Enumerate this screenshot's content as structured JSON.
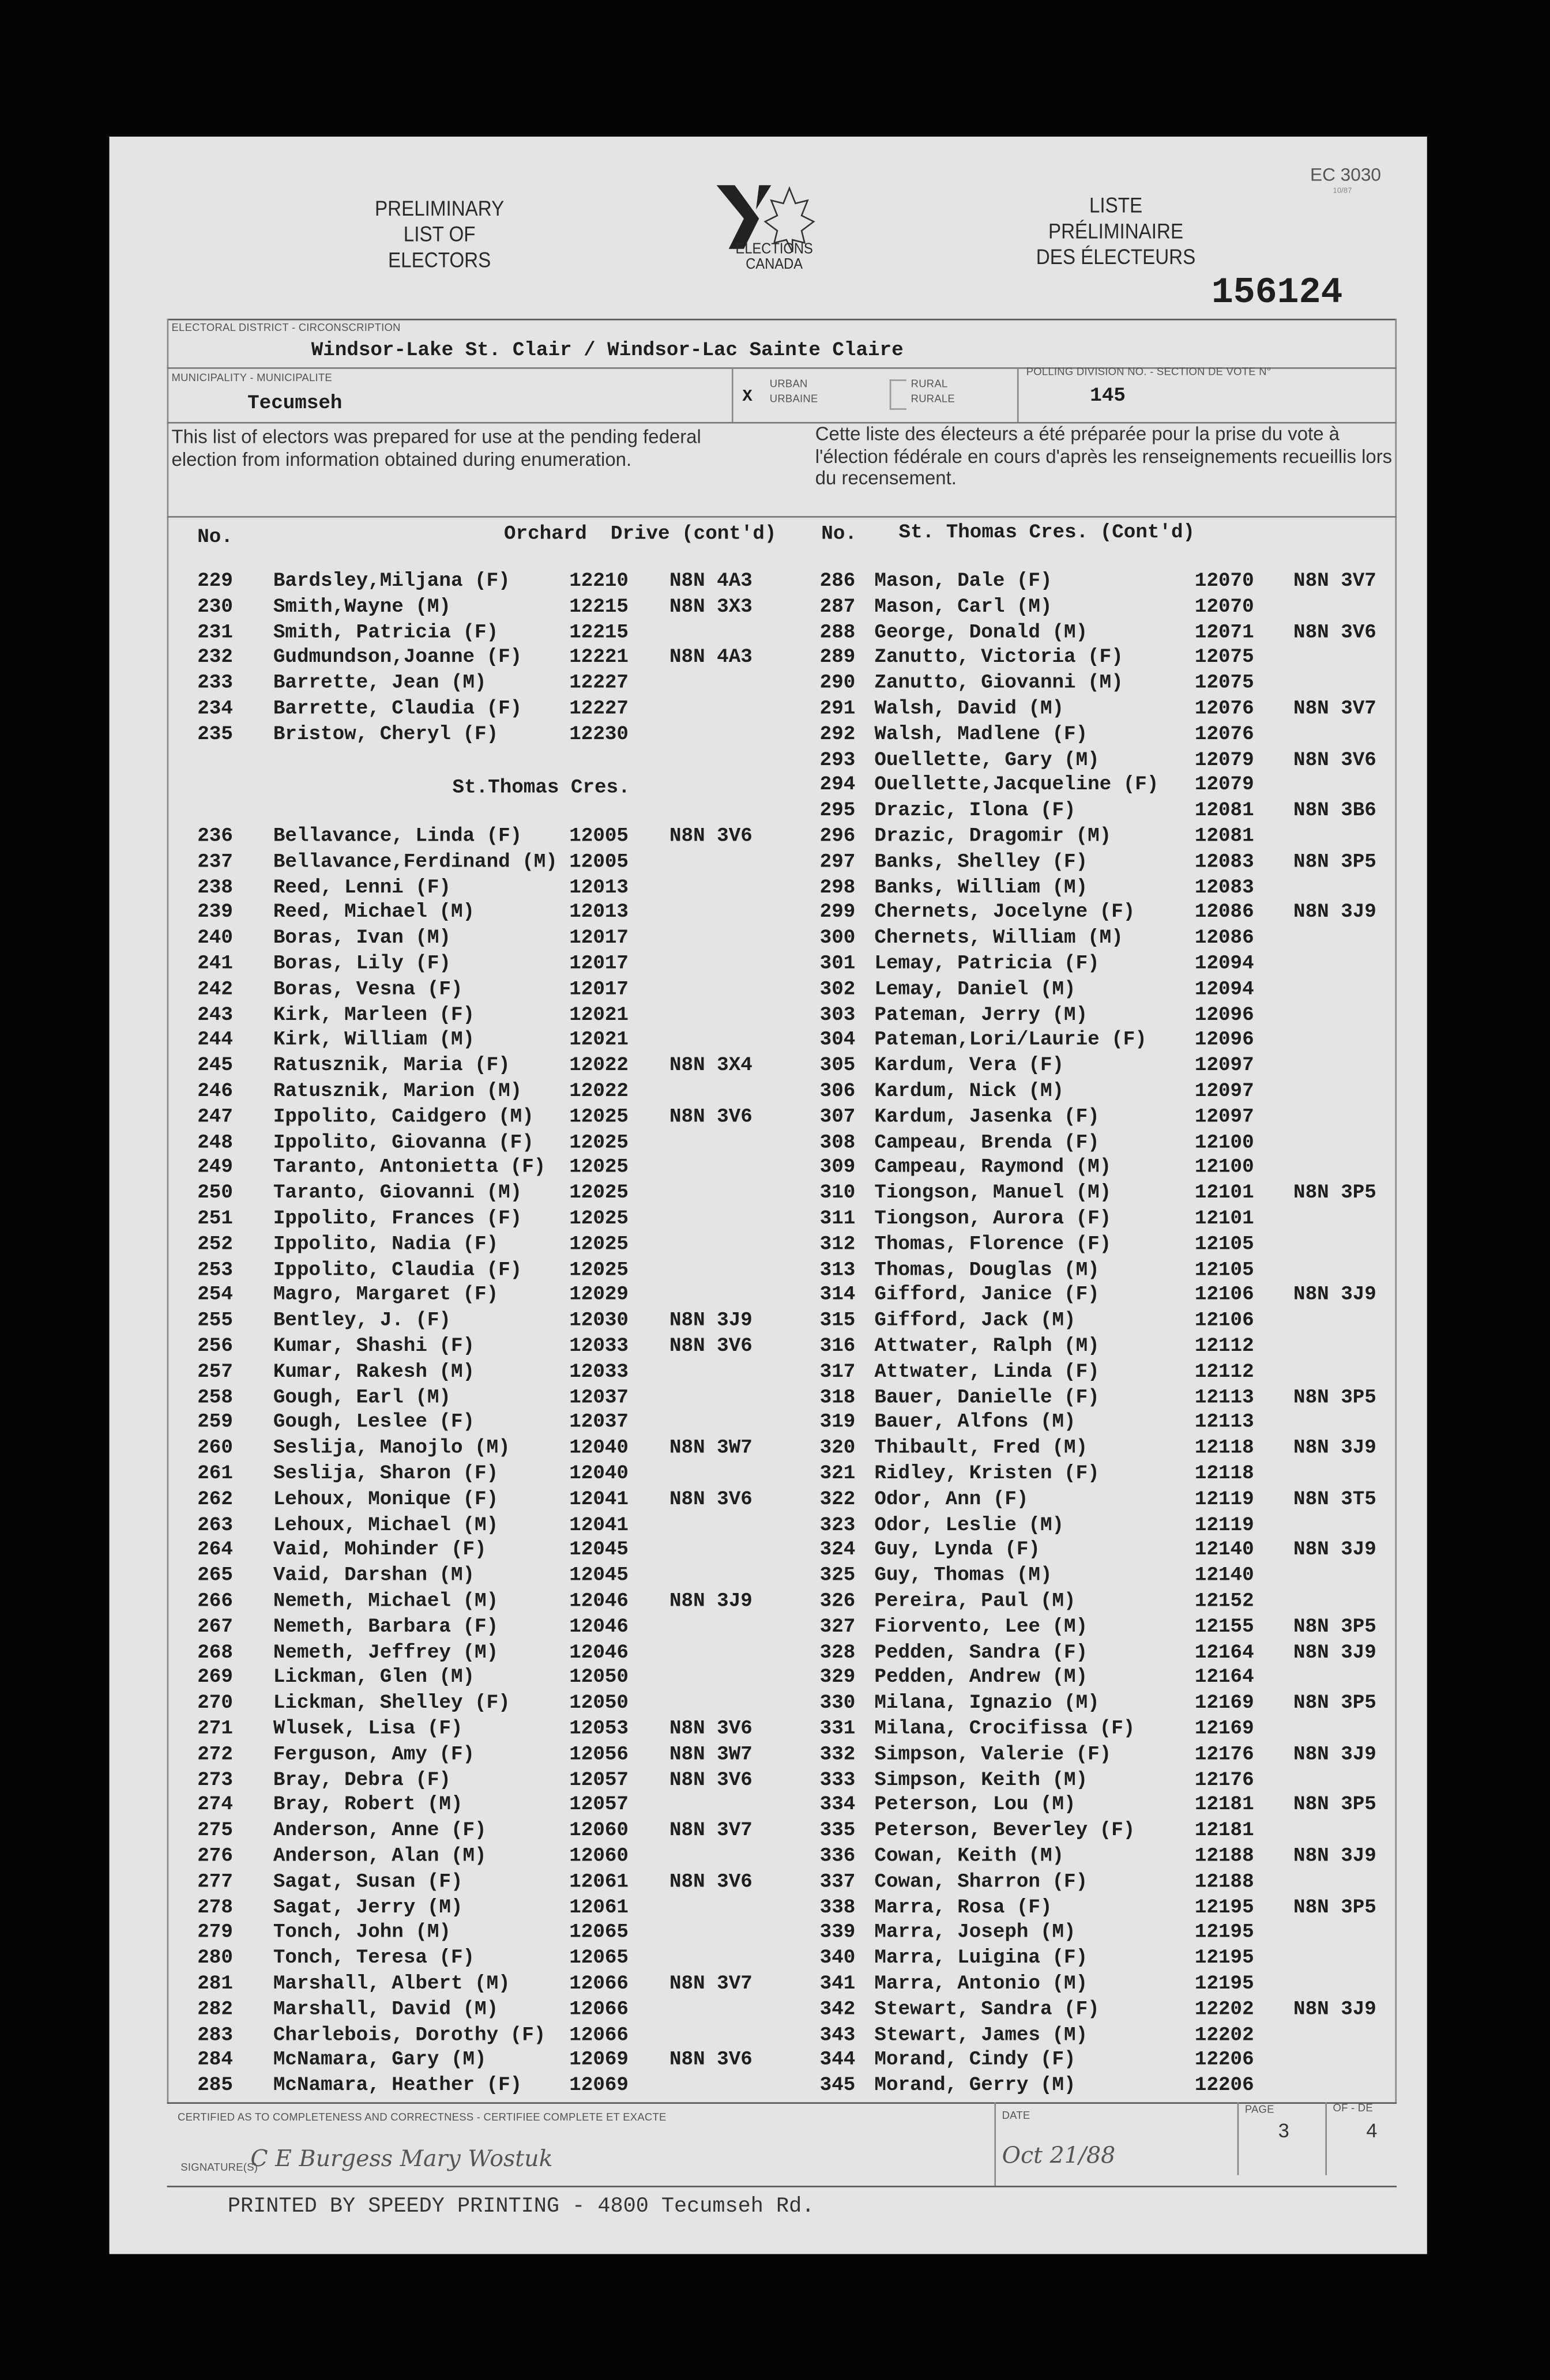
{
  "header": {
    "title_en": [
      "PRELIMINARY",
      "LIST OF",
      "ELECTORS"
    ],
    "title_fr": [
      "LISTE",
      "PRÉLIMINAIRE",
      "DES ÉLECTEURS"
    ],
    "logo_text": [
      "ELECTIONS",
      "CANADA"
    ],
    "form_code": "EC 3030",
    "form_date": "10/87",
    "serial": "156124"
  },
  "district": {
    "label": "ELECTORAL DISTRICT - CIRCONSCRIPTION",
    "value": "Windsor-Lake St. Clair / Windsor-Lac Sainte Claire"
  },
  "municipality": {
    "label": "MUNICIPALITY - MUNICIPALITE",
    "value": "Tecumseh"
  },
  "area_type": {
    "urban_en": "URBAN",
    "urban_fr": "URBAINE",
    "rural_en": "RURAL",
    "rural_fr": "RURALE",
    "selected": "urban",
    "mark": "X"
  },
  "polling": {
    "label": "POLLING DIVISION NO. - SECTION DE VOTE N°",
    "value": "145"
  },
  "notice": {
    "en": "This list of electors was prepared for use at the pending federal election from information obtained during enumeration.",
    "fr": "Cette liste des électeurs a été préparée pour la prise du vote à l'élection fédérale en cours d'après les renseignements recueillis lors du recensement."
  },
  "columns": {
    "no_left": "No.",
    "street_left": "Orchard  Drive (cont'd)",
    "no_right": "No.",
    "street_right": "St. Thomas Cres. (Cont'd)"
  },
  "left_heading": "St.Thomas Cres.",
  "left_a": [
    [
      "229",
      "Bardsley,Miljana (F)",
      "12210",
      "N8N 4A3"
    ],
    [
      "230",
      "Smith,Wayne (M)",
      "12215",
      "N8N 3X3"
    ],
    [
      "231",
      "Smith, Patricia (F)",
      "12215",
      ""
    ],
    [
      "232",
      "Gudmundson,Joanne (F)",
      "12221",
      "N8N 4A3"
    ],
    [
      "233",
      "Barrette, Jean (M)",
      "12227",
      ""
    ],
    [
      "234",
      "Barrette, Claudia (F)",
      "12227",
      ""
    ],
    [
      "235",
      "Bristow, Cheryl (F)",
      "12230",
      ""
    ]
  ],
  "left_b": [
    [
      "236",
      "Bellavance, Linda (F)",
      "12005",
      "N8N 3V6"
    ],
    [
      "237",
      "Bellavance,Ferdinand (M)",
      "12005",
      ""
    ],
    [
      "238",
      "Reed, Lenni (F)",
      "12013",
      ""
    ],
    [
      "239",
      "Reed, Michael (M)",
      "12013",
      ""
    ],
    [
      "240",
      "Boras, Ivan (M)",
      "12017",
      ""
    ],
    [
      "241",
      "Boras, Lily (F)",
      "12017",
      ""
    ],
    [
      "242",
      "Boras, Vesna (F)",
      "12017",
      ""
    ],
    [
      "243",
      "Kirk, Marleen (F)",
      "12021",
      ""
    ],
    [
      "244",
      "Kirk, William (M)",
      "12021",
      ""
    ],
    [
      "245",
      "Ratusznik, Maria (F)",
      "12022",
      "N8N 3X4"
    ],
    [
      "246",
      "Ratusznik, Marion (M)",
      "12022",
      ""
    ],
    [
      "247",
      "Ippolito, Caidgero (M)",
      "12025",
      "N8N 3V6"
    ],
    [
      "248",
      "Ippolito, Giovanna (F)",
      "12025",
      ""
    ],
    [
      "249",
      "Taranto, Antonietta (F)",
      "12025",
      ""
    ],
    [
      "250",
      "Taranto, Giovanni (M)",
      "12025",
      ""
    ],
    [
      "251",
      "Ippolito, Frances (F)",
      "12025",
      ""
    ],
    [
      "252",
      "Ippolito, Nadia (F)",
      "12025",
      ""
    ],
    [
      "253",
      "Ippolito, Claudia (F)",
      "12025",
      ""
    ],
    [
      "254",
      "Magro, Margaret (F)",
      "12029",
      ""
    ],
    [
      "255",
      "Bentley, J. (F)",
      "12030",
      "N8N 3J9"
    ],
    [
      "256",
      "Kumar, Shashi (F)",
      "12033",
      "N8N 3V6"
    ],
    [
      "257",
      "Kumar, Rakesh (M)",
      "12033",
      ""
    ],
    [
      "258",
      "Gough, Earl (M)",
      "12037",
      ""
    ],
    [
      "259",
      "Gough, Leslee (F)",
      "12037",
      ""
    ],
    [
      "260",
      "Seslija, Manojlo (M)",
      "12040",
      "N8N 3W7"
    ],
    [
      "261",
      "Seslija, Sharon (F)",
      "12040",
      ""
    ],
    [
      "262",
      "Lehoux, Monique (F)",
      "12041",
      "N8N 3V6"
    ],
    [
      "263",
      "Lehoux, Michael (M)",
      "12041",
      ""
    ],
    [
      "264",
      "Vaid, Mohinder (F)",
      "12045",
      ""
    ],
    [
      "265",
      "Vaid, Darshan (M)",
      "12045",
      ""
    ],
    [
      "266",
      "Nemeth, Michael (M)",
      "12046",
      "N8N 3J9"
    ],
    [
      "267",
      "Nemeth, Barbara (F)",
      "12046",
      ""
    ],
    [
      "268",
      "Nemeth, Jeffrey (M)",
      "12046",
      ""
    ],
    [
      "269",
      "Lickman, Glen (M)",
      "12050",
      ""
    ],
    [
      "270",
      "Lickman, Shelley (F)",
      "12050",
      ""
    ],
    [
      "271",
      "Wlusek, Lisa (F)",
      "12053",
      "N8N 3V6"
    ],
    [
      "272",
      "Ferguson, Amy (F)",
      "12056",
      "N8N 3W7"
    ],
    [
      "273",
      "Bray, Debra (F)",
      "12057",
      "N8N 3V6"
    ],
    [
      "274",
      "Bray, Robert (M)",
      "12057",
      ""
    ],
    [
      "275",
      "Anderson, Anne (F)",
      "12060",
      "N8N 3V7"
    ],
    [
      "276",
      "Anderson, Alan (M)",
      "12060",
      ""
    ],
    [
      "277",
      "Sagat, Susan (F)",
      "12061",
      "N8N 3V6"
    ],
    [
      "278",
      "Sagat, Jerry (M)",
      "12061",
      ""
    ],
    [
      "279",
      "Tonch, John (M)",
      "12065",
      ""
    ],
    [
      "280",
      "Tonch, Teresa (F)",
      "12065",
      ""
    ],
    [
      "281",
      "Marshall, Albert (M)",
      "12066",
      "N8N 3V7"
    ],
    [
      "282",
      "Marshall, David (M)",
      "12066",
      ""
    ],
    [
      "283",
      "Charlebois, Dorothy (F)",
      "12066",
      ""
    ],
    [
      "284",
      "McNamara, Gary (M)",
      "12069",
      "N8N 3V6"
    ],
    [
      "285",
      "McNamara, Heather (F)",
      "12069",
      ""
    ]
  ],
  "right": [
    [
      "286",
      "Mason, Dale (F)",
      "12070",
      "N8N 3V7"
    ],
    [
      "287",
      "Mason, Carl (M)",
      "12070",
      ""
    ],
    [
      "288",
      "George, Donald (M)",
      "12071",
      "N8N 3V6"
    ],
    [
      "289",
      "Zanutto, Victoria (F)",
      "12075",
      ""
    ],
    [
      "290",
      "Zanutto, Giovanni (M)",
      "12075",
      ""
    ],
    [
      "291",
      "Walsh, David (M)",
      "12076",
      "N8N 3V7"
    ],
    [
      "292",
      "Walsh, Madlene (F)",
      "12076",
      ""
    ],
    [
      "293",
      "Ouellette, Gary (M)",
      "12079",
      "N8N 3V6"
    ],
    [
      "294",
      "Ouellette,Jacqueline (F)",
      "12079",
      ""
    ],
    [
      "295",
      "Drazic, Ilona (F)",
      "12081",
      "N8N 3B6"
    ],
    [
      "296",
      "Drazic, Dragomir (M)",
      "12081",
      ""
    ],
    [
      "297",
      "Banks, Shelley (F)",
      "12083",
      "N8N 3P5"
    ],
    [
      "298",
      "Banks, William (M)",
      "12083",
      ""
    ],
    [
      "299",
      "Chernets, Jocelyne (F)",
      "12086",
      "N8N 3J9"
    ],
    [
      "300",
      "Chernets, William (M)",
      "12086",
      ""
    ],
    [
      "301",
      "Lemay, Patricia (F)",
      "12094",
      ""
    ],
    [
      "302",
      "Lemay, Daniel (M)",
      "12094",
      ""
    ],
    [
      "303",
      "Pateman, Jerry (M)",
      "12096",
      ""
    ],
    [
      "304",
      "Pateman,Lori/Laurie (F)",
      "12096",
      ""
    ],
    [
      "305",
      "Kardum, Vera (F)",
      "12097",
      ""
    ],
    [
      "306",
      "Kardum, Nick (M)",
      "12097",
      ""
    ],
    [
      "307",
      "Kardum, Jasenka (F)",
      "12097",
      ""
    ],
    [
      "308",
      "Campeau, Brenda (F)",
      "12100",
      ""
    ],
    [
      "309",
      "Campeau, Raymond (M)",
      "12100",
      ""
    ],
    [
      "310",
      "Tiongson, Manuel (M)",
      "12101",
      "N8N 3P5"
    ],
    [
      "311",
      "Tiongson, Aurora (F)",
      "12101",
      ""
    ],
    [
      "312",
      "Thomas, Florence (F)",
      "12105",
      ""
    ],
    [
      "313",
      "Thomas, Douglas (M)",
      "12105",
      ""
    ],
    [
      "314",
      "Gifford, Janice (F)",
      "12106",
      "N8N 3J9"
    ],
    [
      "315",
      "Gifford, Jack (M)",
      "12106",
      ""
    ],
    [
      "316",
      "Attwater, Ralph (M)",
      "12112",
      ""
    ],
    [
      "317",
      "Attwater, Linda (F)",
      "12112",
      ""
    ],
    [
      "318",
      "Bauer, Danielle (F)",
      "12113",
      "N8N 3P5"
    ],
    [
      "319",
      "Bauer, Alfons (M)",
      "12113",
      ""
    ],
    [
      "320",
      "Thibault, Fred (M)",
      "12118",
      "N8N 3J9"
    ],
    [
      "321",
      "Ridley, Kristen (F)",
      "12118",
      ""
    ],
    [
      "322",
      "Odor, Ann (F)",
      "12119",
      "N8N 3T5"
    ],
    [
      "323",
      "Odor, Leslie (M)",
      "12119",
      ""
    ],
    [
      "324",
      "Guy, Lynda (F)",
      "12140",
      "N8N 3J9"
    ],
    [
      "325",
      "Guy, Thomas (M)",
      "12140",
      ""
    ],
    [
      "326",
      "Pereira, Paul (M)",
      "12152",
      ""
    ],
    [
      "327",
      "Fiorvento, Lee (M)",
      "12155",
      "N8N 3P5"
    ],
    [
      "328",
      "Pedden, Sandra (F)",
      "12164",
      "N8N 3J9"
    ],
    [
      "329",
      "Pedden, Andrew (M)",
      "12164",
      ""
    ],
    [
      "330",
      "Milana, Ignazio (M)",
      "12169",
      "N8N 3P5"
    ],
    [
      "331",
      "Milana, Crocifissa (F)",
      "12169",
      ""
    ],
    [
      "332",
      "Simpson, Valerie (F)",
      "12176",
      "N8N 3J9"
    ],
    [
      "333",
      "Simpson, Keith (M)",
      "12176",
      ""
    ],
    [
      "334",
      "Peterson, Lou (M)",
      "12181",
      "N8N 3P5"
    ],
    [
      "335",
      "Peterson, Beverley (F)",
      "12181",
      ""
    ],
    [
      "336",
      "Cowan, Keith (M)",
      "12188",
      "N8N 3J9"
    ],
    [
      "337",
      "Cowan, Sharron (F)",
      "12188",
      ""
    ],
    [
      "338",
      "Marra, Rosa (F)",
      "12195",
      "N8N 3P5"
    ],
    [
      "339",
      "Marra, Joseph (M)",
      "12195",
      ""
    ],
    [
      "340",
      "Marra, Luigina (F)",
      "12195",
      ""
    ],
    [
      "341",
      "Marra, Antonio (M)",
      "12195",
      ""
    ],
    [
      "342",
      "Stewart, Sandra (F)",
      "12202",
      "N8N 3J9"
    ],
    [
      "343",
      "Stewart, James (M)",
      "12202",
      ""
    ],
    [
      "344",
      "Morand, Cindy (F)",
      "12206",
      ""
    ],
    [
      "345",
      "Morand, Gerry (M)",
      "12206",
      ""
    ]
  ],
  "footer": {
    "certified_label": "CERTIFIED AS TO COMPLETENESS AND CORRECTNESS - CERTIFIEE COMPLETE ET EXACTE",
    "signatures_label": "SIGNATURE(S)",
    "signatures": "C E Burgess   Mary Wostuk",
    "date_label": "DATE",
    "date_value": "Oct 21/88",
    "page_label": "PAGE",
    "page_value": "3",
    "of_label": "OF - DE",
    "of_value": "4",
    "printer": "PRINTED BY SPEEDY PRINTING - 4800 Tecumseh Rd."
  }
}
